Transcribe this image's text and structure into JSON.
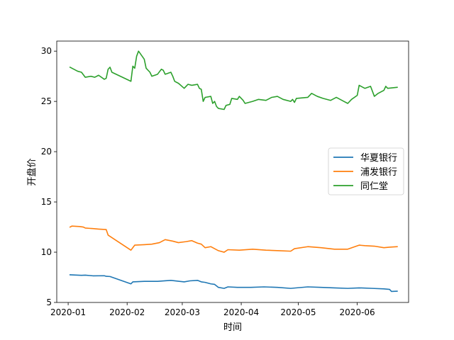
{
  "chart_data": {
    "type": "line",
    "title": "",
    "xlabel": "时间",
    "ylabel": "开盘价",
    "ylim": [
      5,
      31
    ],
    "xlim": [
      "2019-12-26",
      "2020-06-28"
    ],
    "x_ticks": [
      "2020-01",
      "2020-02",
      "2020-03",
      "2020-04",
      "2020-05",
      "2020-06"
    ],
    "y_ticks": [
      5,
      10,
      15,
      20,
      25,
      30
    ],
    "legend_position": "right",
    "grid": false,
    "series": [
      {
        "name": "华夏银行",
        "color": "#1f77b4",
        "points": [
          [
            "2020-01-02",
            7.75
          ],
          [
            "2020-01-08",
            7.7
          ],
          [
            "2020-01-10",
            7.72
          ],
          [
            "2020-01-14",
            7.65
          ],
          [
            "2020-01-20",
            7.66
          ],
          [
            "2020-01-21",
            7.6
          ],
          [
            "2020-01-23",
            7.58
          ],
          [
            "2020-02-03",
            6.85
          ],
          [
            "2020-02-04",
            7.05
          ],
          [
            "2020-02-10",
            7.1
          ],
          [
            "2020-02-17",
            7.1
          ],
          [
            "2020-02-24",
            7.2
          ],
          [
            "2020-03-02",
            7.05
          ],
          [
            "2020-03-05",
            7.15
          ],
          [
            "2020-03-09",
            7.2
          ],
          [
            "2020-03-11",
            7.05
          ],
          [
            "2020-03-13",
            7.0
          ],
          [
            "2020-03-16",
            6.85
          ],
          [
            "2020-03-18",
            6.8
          ],
          [
            "2020-03-20",
            6.5
          ],
          [
            "2020-03-23",
            6.4
          ],
          [
            "2020-03-25",
            6.55
          ],
          [
            "2020-03-30",
            6.5
          ],
          [
            "2020-04-06",
            6.5
          ],
          [
            "2020-04-13",
            6.55
          ],
          [
            "2020-04-20",
            6.5
          ],
          [
            "2020-04-27",
            6.4
          ],
          [
            "2020-05-06",
            6.55
          ],
          [
            "2020-05-13",
            6.5
          ],
          [
            "2020-05-20",
            6.45
          ],
          [
            "2020-05-27",
            6.4
          ],
          [
            "2020-06-02",
            6.45
          ],
          [
            "2020-06-09",
            6.4
          ],
          [
            "2020-06-15",
            6.35
          ],
          [
            "2020-06-18",
            6.3
          ],
          [
            "2020-06-19",
            6.1
          ],
          [
            "2020-06-22",
            6.12
          ]
        ]
      },
      {
        "name": "浦发银行",
        "color": "#ff7f0e",
        "points": [
          [
            "2020-01-02",
            12.5
          ],
          [
            "2020-01-03",
            12.6
          ],
          [
            "2020-01-07",
            12.55
          ],
          [
            "2020-01-09",
            12.5
          ],
          [
            "2020-01-10",
            12.4
          ],
          [
            "2020-01-14",
            12.35
          ],
          [
            "2020-01-17",
            12.3
          ],
          [
            "2020-01-21",
            12.25
          ],
          [
            "2020-01-22",
            11.7
          ],
          [
            "2020-02-03",
            10.2
          ],
          [
            "2020-02-05",
            10.7
          ],
          [
            "2020-02-10",
            10.75
          ],
          [
            "2020-02-14",
            10.8
          ],
          [
            "2020-02-18",
            10.95
          ],
          [
            "2020-02-21",
            11.25
          ],
          [
            "2020-02-25",
            11.1
          ],
          [
            "2020-02-28",
            10.95
          ],
          [
            "2020-03-03",
            11.05
          ],
          [
            "2020-03-06",
            11.15
          ],
          [
            "2020-03-09",
            10.9
          ],
          [
            "2020-03-11",
            10.8
          ],
          [
            "2020-03-13",
            10.45
          ],
          [
            "2020-03-16",
            10.55
          ],
          [
            "2020-03-18",
            10.35
          ],
          [
            "2020-03-20",
            10.15
          ],
          [
            "2020-03-23",
            10.0
          ],
          [
            "2020-03-25",
            10.25
          ],
          [
            "2020-03-31",
            10.2
          ],
          [
            "2020-04-07",
            10.3
          ],
          [
            "2020-04-14",
            10.2
          ],
          [
            "2020-04-21",
            10.15
          ],
          [
            "2020-04-27",
            10.1
          ],
          [
            "2020-04-29",
            10.35
          ],
          [
            "2020-05-06",
            10.55
          ],
          [
            "2020-05-13",
            10.45
          ],
          [
            "2020-05-20",
            10.3
          ],
          [
            "2020-05-27",
            10.3
          ],
          [
            "2020-06-02",
            10.7
          ],
          [
            "2020-06-05",
            10.65
          ],
          [
            "2020-06-10",
            10.6
          ],
          [
            "2020-06-15",
            10.45
          ],
          [
            "2020-06-18",
            10.5
          ],
          [
            "2020-06-22",
            10.55
          ]
        ]
      },
      {
        "name": "同仁堂",
        "color": "#2ca02c",
        "points": [
          [
            "2020-01-02",
            28.4
          ],
          [
            "2020-01-06",
            28.0
          ],
          [
            "2020-01-08",
            27.9
          ],
          [
            "2020-01-10",
            27.4
          ],
          [
            "2020-01-13",
            27.5
          ],
          [
            "2020-01-15",
            27.4
          ],
          [
            "2020-01-17",
            27.6
          ],
          [
            "2020-01-20",
            27.2
          ],
          [
            "2020-01-21",
            27.3
          ],
          [
            "2020-01-22",
            28.2
          ],
          [
            "2020-01-23",
            28.4
          ],
          [
            "2020-01-24",
            27.9
          ],
          [
            "2020-02-03",
            27.0
          ],
          [
            "2020-02-04",
            28.5
          ],
          [
            "2020-02-05",
            28.3
          ],
          [
            "2020-02-06",
            29.5
          ],
          [
            "2020-02-07",
            30.0
          ],
          [
            "2020-02-10",
            29.2
          ],
          [
            "2020-02-11",
            28.3
          ],
          [
            "2020-02-13",
            27.9
          ],
          [
            "2020-02-14",
            27.5
          ],
          [
            "2020-02-17",
            27.7
          ],
          [
            "2020-02-19",
            28.2
          ],
          [
            "2020-02-20",
            28.1
          ],
          [
            "2020-02-21",
            27.7
          ],
          [
            "2020-02-24",
            27.9
          ],
          [
            "2020-02-25",
            27.5
          ],
          [
            "2020-02-26",
            27.0
          ],
          [
            "2020-02-28",
            26.8
          ],
          [
            "2020-03-02",
            26.3
          ],
          [
            "2020-03-04",
            26.7
          ],
          [
            "2020-03-06",
            26.6
          ],
          [
            "2020-03-09",
            26.7
          ],
          [
            "2020-03-10",
            26.3
          ],
          [
            "2020-03-11",
            26.2
          ],
          [
            "2020-03-12",
            25.0
          ],
          [
            "2020-03-13",
            25.4
          ],
          [
            "2020-03-16",
            25.5
          ],
          [
            "2020-03-17",
            24.8
          ],
          [
            "2020-03-18",
            25.0
          ],
          [
            "2020-03-19",
            24.5
          ],
          [
            "2020-03-20",
            24.3
          ],
          [
            "2020-03-23",
            24.2
          ],
          [
            "2020-03-24",
            24.6
          ],
          [
            "2020-03-26",
            24.7
          ],
          [
            "2020-03-27",
            25.3
          ],
          [
            "2020-03-30",
            25.2
          ],
          [
            "2020-03-31",
            25.5
          ],
          [
            "2020-04-02",
            25.1
          ],
          [
            "2020-04-03",
            24.8
          ],
          [
            "2020-04-07",
            25.0
          ],
          [
            "2020-04-10",
            25.2
          ],
          [
            "2020-04-14",
            25.1
          ],
          [
            "2020-04-17",
            25.4
          ],
          [
            "2020-04-20",
            25.5
          ],
          [
            "2020-04-23",
            25.2
          ],
          [
            "2020-04-27",
            25.0
          ],
          [
            "2020-04-28",
            25.2
          ],
          [
            "2020-04-29",
            24.9
          ],
          [
            "2020-04-30",
            25.3
          ],
          [
            "2020-05-06",
            25.4
          ],
          [
            "2020-05-08",
            25.8
          ],
          [
            "2020-05-11",
            25.5
          ],
          [
            "2020-05-14",
            25.3
          ],
          [
            "2020-05-18",
            25.1
          ],
          [
            "2020-05-21",
            25.4
          ],
          [
            "2020-05-25",
            25.0
          ],
          [
            "2020-05-27",
            24.8
          ],
          [
            "2020-05-29",
            25.2
          ],
          [
            "2020-06-01",
            25.6
          ],
          [
            "2020-06-02",
            26.6
          ],
          [
            "2020-06-04",
            26.4
          ],
          [
            "2020-06-05",
            26.3
          ],
          [
            "2020-06-08",
            26.5
          ],
          [
            "2020-06-10",
            25.5
          ],
          [
            "2020-06-12",
            25.8
          ],
          [
            "2020-06-15",
            26.1
          ],
          [
            "2020-06-16",
            26.5
          ],
          [
            "2020-06-17",
            26.3
          ],
          [
            "2020-06-22",
            26.4
          ]
        ]
      }
    ]
  }
}
